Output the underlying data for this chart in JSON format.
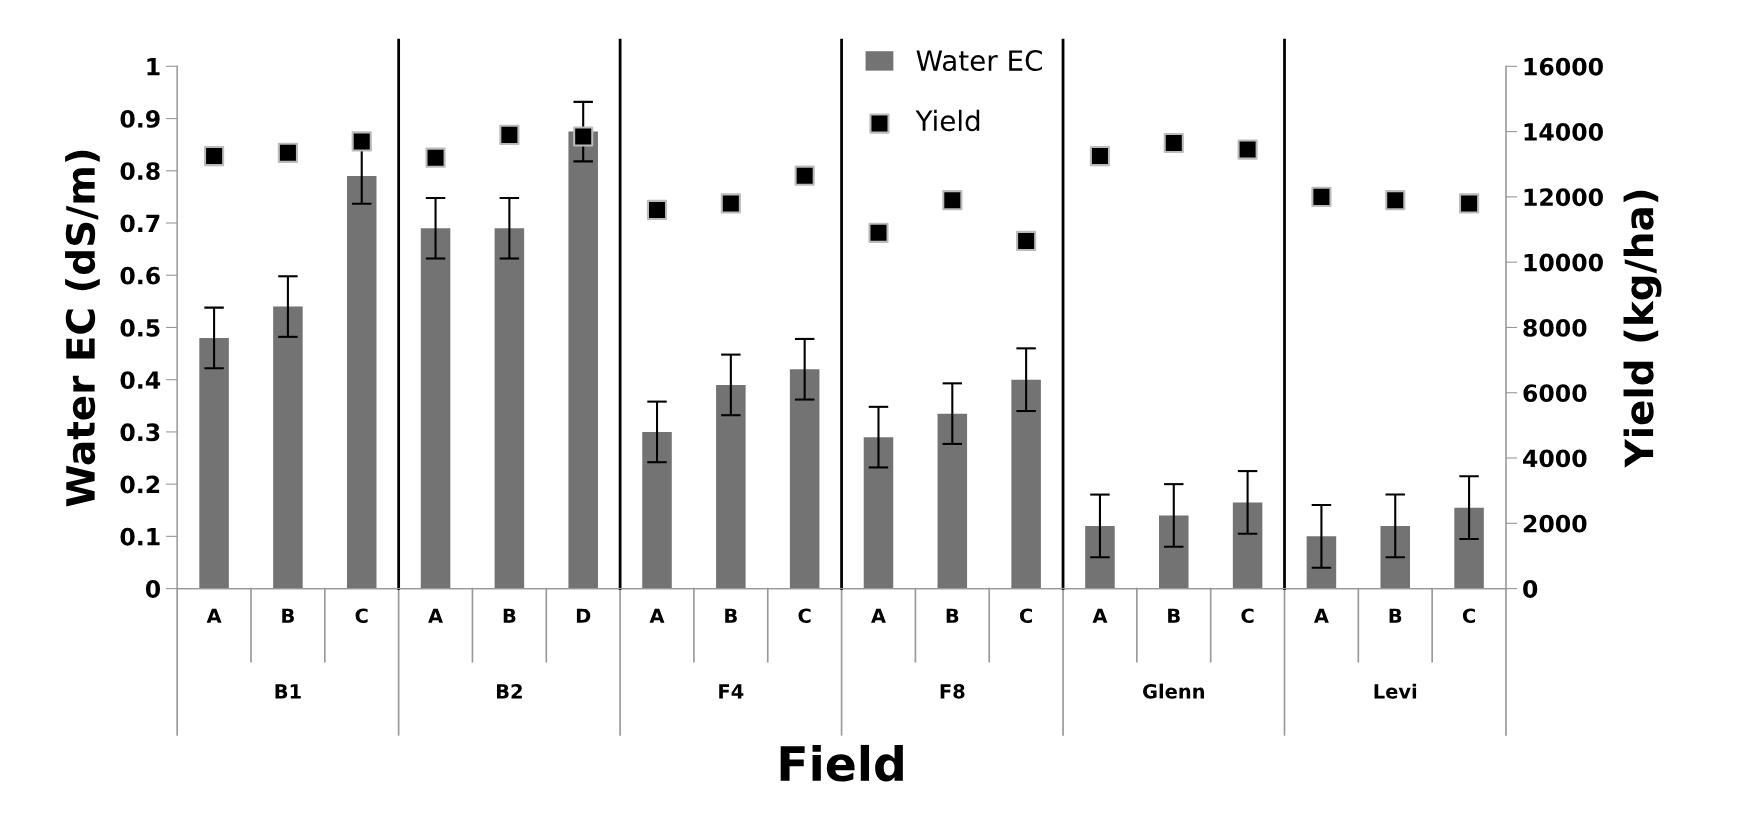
{
  "chart_data": {
    "type": "bar",
    "xlabel": "Field",
    "ylabel": "Water EC (dS/m)",
    "y2label": "Yield (kg/ha)",
    "categories": [
      "A",
      "B",
      "C",
      "A",
      "B",
      "D",
      "A",
      "B",
      "C",
      "A",
      "B",
      "C",
      "A",
      "B",
      "C",
      "A",
      "B",
      "C"
    ],
    "annotations": [
      "B1",
      "B2",
      "F4",
      "F8",
      "Glenn",
      "Levi"
    ],
    "series": [
      {
        "name": "Water EC",
        "color": "#737373",
        "values": [
          0.48,
          0.54,
          0.79,
          0.69,
          0.69,
          0.875,
          0.3,
          0.39,
          0.42,
          0.29,
          0.335,
          0.4,
          0.12,
          0.14,
          0.165,
          0.1,
          0.12,
          0.155
        ],
        "errors": [
          0.058,
          0.058,
          0.053,
          0.058,
          0.058,
          0.057,
          0.058,
          0.058,
          0.058,
          0.058,
          0.058,
          0.06,
          0.06,
          0.06,
          0.06,
          0.06,
          0.06,
          0.06
        ]
      },
      {
        "name": "Yield",
        "type": "scatter",
        "axis": "y2",
        "marker": "square",
        "color": "#000000",
        "values": [
          13250,
          13350,
          13700,
          13200,
          13900,
          13850,
          11600,
          11800,
          12650,
          10900,
          11900,
          10650,
          13250,
          13650,
          13450,
          12000,
          11900,
          11800
        ]
      }
    ],
    "ylim": [
      0,
      1
    ],
    "yticks": [
      0,
      0.1,
      0.2,
      0.3,
      0.4,
      0.5,
      0.6,
      0.7,
      0.8,
      0.9,
      1
    ],
    "y2lim": [
      0,
      16000
    ],
    "y2ticks": [
      0,
      2000,
      4000,
      6000,
      8000,
      10000,
      12000,
      14000,
      16000
    ],
    "legend": "top",
    "grid": false
  }
}
